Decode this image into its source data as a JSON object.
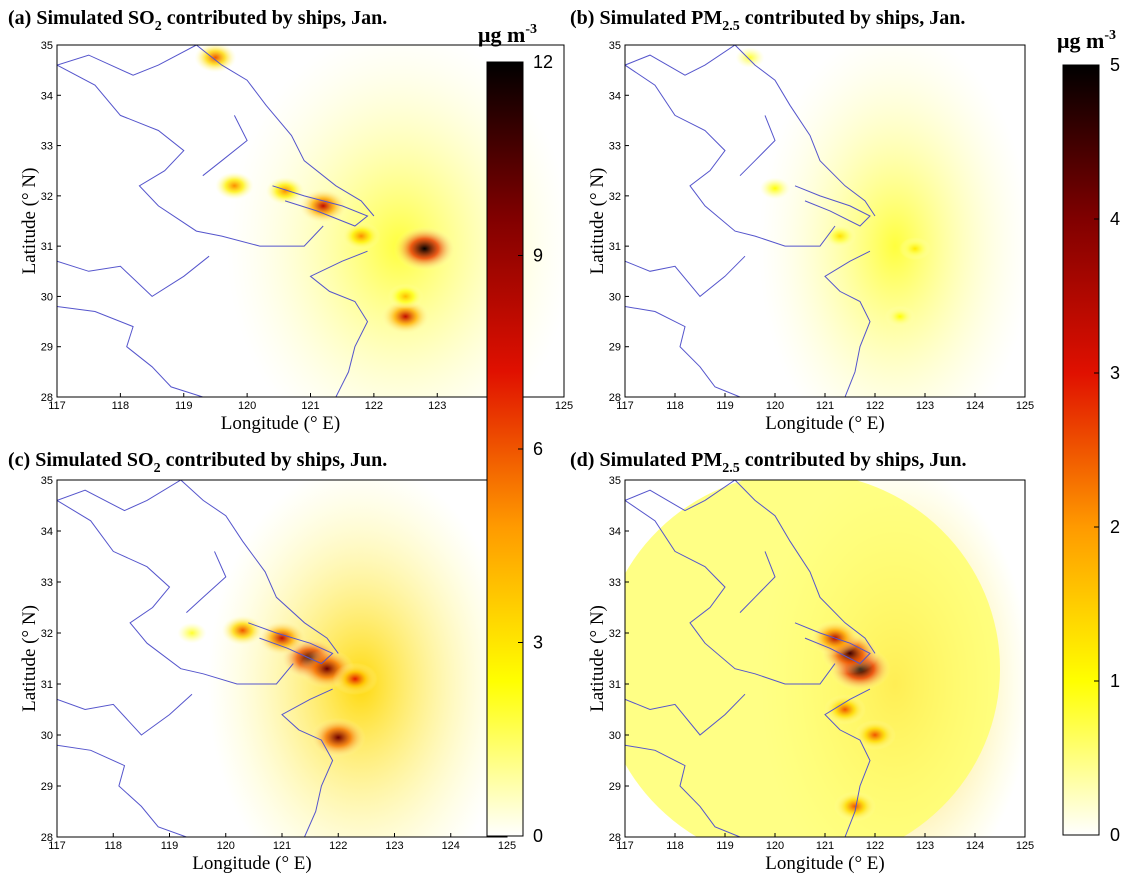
{
  "chart_data": [
    {
      "type": "heatmap",
      "panel": "a",
      "title": "(a) Simulated SO2 contributed by ships, Jan.",
      "title_parts": [
        "(a) Simulated SO",
        "2",
        " contributed by ships, Jan."
      ],
      "xlabel": "Longitude (°  E)",
      "ylabel": "Latitude (°  N)",
      "xlim": [
        117,
        125
      ],
      "ylim": [
        28,
        35
      ],
      "x_ticks": [
        "117",
        "118",
        "119",
        "120",
        "121",
        "122",
        "123",
        "124",
        "125"
      ],
      "y_ticks": [
        "28",
        "29",
        "30",
        "31",
        "32",
        "33",
        "34",
        "35"
      ],
      "colorbar_range": [
        0,
        12
      ],
      "hotspots": [
        {
          "lon": 122.8,
          "lat": 30.95,
          "value": 12
        },
        {
          "lon": 122.5,
          "lat": 29.6,
          "value": 8
        },
        {
          "lon": 121.2,
          "lat": 31.8,
          "value": 8
        },
        {
          "lon": 119.5,
          "lat": 34.75,
          "value": 6
        },
        {
          "lon": 119.8,
          "lat": 32.2,
          "value": 5
        },
        {
          "lon": 120.6,
          "lat": 32.1,
          "value": 5
        },
        {
          "lon": 121.8,
          "lat": 31.2,
          "value": 5
        },
        {
          "lon": 122.5,
          "lat": 30.0,
          "value": 4
        }
      ]
    },
    {
      "type": "heatmap",
      "panel": "b",
      "title": "(b) Simulated PM2.5 contributed by ships, Jan.",
      "title_parts": [
        "(b) Simulated PM",
        "2.5",
        " contributed by ships, Jan."
      ],
      "xlabel": "Longitude (°  E)",
      "ylabel": "Latitude (°  N)",
      "xlim": [
        117,
        125
      ],
      "ylim": [
        28,
        35
      ],
      "x_ticks": [
        "117",
        "118",
        "119",
        "120",
        "121",
        "122",
        "123",
        "124",
        "125"
      ],
      "y_ticks": [
        "28",
        "29",
        "30",
        "31",
        "32",
        "33",
        "34",
        "35"
      ],
      "colorbar_range": [
        0,
        5
      ],
      "hotspots": [
        {
          "lon": 121.3,
          "lat": 31.2,
          "value": 1.3
        },
        {
          "lon": 122.8,
          "lat": 30.95,
          "value": 1.2
        },
        {
          "lon": 120.0,
          "lat": 32.15,
          "value": 1.0
        },
        {
          "lon": 122.5,
          "lat": 29.6,
          "value": 1.0
        },
        {
          "lon": 119.5,
          "lat": 34.75,
          "value": 0.8
        }
      ]
    },
    {
      "type": "heatmap",
      "panel": "c",
      "title": "(c) Simulated SO2 contributed by ships, Jun.",
      "title_parts": [
        "(c) Simulated SO",
        "2",
        " contributed by ships, Jun."
      ],
      "xlabel": "Longitude (°  E)",
      "ylabel": "Latitude (°  N)",
      "xlim": [
        117,
        125
      ],
      "ylim": [
        28,
        35
      ],
      "x_ticks": [
        "117",
        "118",
        "119",
        "120",
        "121",
        "122",
        "123",
        "124",
        "125"
      ],
      "y_ticks": [
        "28",
        "29",
        "30",
        "31",
        "32",
        "33",
        "34",
        "35"
      ],
      "colorbar_range": [
        0,
        12
      ],
      "hotspots": [
        {
          "lon": 121.5,
          "lat": 31.5,
          "value": 11
        },
        {
          "lon": 121.8,
          "lat": 31.3,
          "value": 10
        },
        {
          "lon": 121.0,
          "lat": 31.9,
          "value": 8
        },
        {
          "lon": 122.0,
          "lat": 29.95,
          "value": 10
        },
        {
          "lon": 120.3,
          "lat": 32.05,
          "value": 6
        },
        {
          "lon": 122.3,
          "lat": 31.1,
          "value": 7
        },
        {
          "lon": 119.4,
          "lat": 32.0,
          "value": 2
        }
      ]
    },
    {
      "type": "heatmap",
      "panel": "d",
      "title": "(d) Simulated PM2.5 contributed by ships, Jun.",
      "title_parts": [
        "(d) Simulated PM",
        "2.5",
        " contributed by ships, Jun."
      ],
      "xlabel": "Longitude (°  E)",
      "ylabel": "Latitude (°  N)",
      "xlim": [
        117,
        125
      ],
      "ylim": [
        28,
        35
      ],
      "x_ticks": [
        "117",
        "118",
        "119",
        "120",
        "121",
        "122",
        "123",
        "124",
        "125"
      ],
      "y_ticks": [
        "28",
        "29",
        "30",
        "31",
        "32",
        "33",
        "34",
        "35"
      ],
      "colorbar_range": [
        0,
        5
      ],
      "hotspots": [
        {
          "lon": 121.7,
          "lat": 31.3,
          "value": 5
        },
        {
          "lon": 121.5,
          "lat": 31.6,
          "value": 4.5
        },
        {
          "lon": 121.2,
          "lat": 31.9,
          "value": 3.5
        },
        {
          "lon": 121.4,
          "lat": 30.5,
          "value": 2.5
        },
        {
          "lon": 121.6,
          "lat": 28.6,
          "value": 2.5
        },
        {
          "lon": 122.0,
          "lat": 30.0,
          "value": 2.5
        }
      ]
    }
  ],
  "colorbars": [
    {
      "name": "SO2",
      "unit": "μg m-3",
      "unit_base": "μg m",
      "unit_exp": "-3",
      "ticks": [
        "0",
        "3",
        "6",
        "9",
        "12"
      ],
      "range": [
        0,
        12
      ]
    },
    {
      "name": "PM2.5",
      "unit": "μg m-3",
      "unit_base": "μg m",
      "unit_exp": "-3",
      "ticks": [
        "0",
        "1",
        "2",
        "3",
        "4",
        "5"
      ],
      "range": [
        0,
        5
      ]
    }
  ],
  "colormap": [
    "#ffffff",
    "#ffff00",
    "#ff9a00",
    "#e01000",
    "#800000",
    "#000000"
  ],
  "coastline_color": "#5555cc"
}
